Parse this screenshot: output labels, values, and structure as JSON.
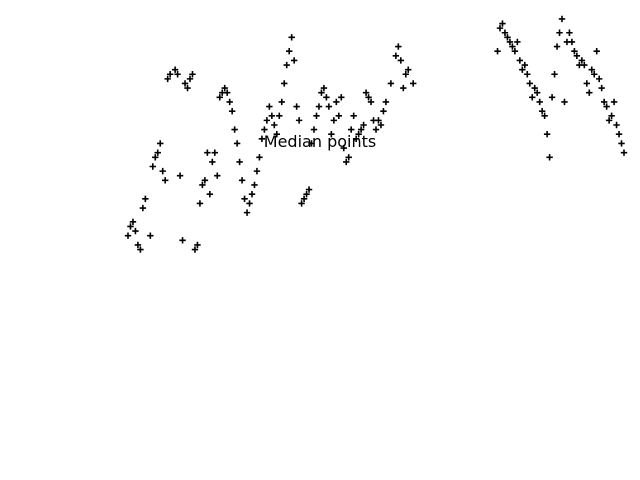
{
  "chart_data": {
    "type": "scatter",
    "title": "Median points",
    "xlabel": "",
    "ylabel": "",
    "xlim": [
      0,
      400
    ],
    "ylim": [
      -50,
      110
    ],
    "grid": false,
    "axes_visible": false,
    "marker": "plus",
    "color": "#000000",
    "series": [
      {
        "points": [
          [
            0,
            0
          ],
          [
            2,
            4
          ],
          [
            4,
            6
          ],
          [
            6,
            2
          ],
          [
            8,
            -4
          ],
          [
            10,
            -6
          ],
          [
            12,
            12
          ],
          [
            14,
            16
          ],
          [
            18,
            0
          ],
          [
            20,
            30
          ],
          [
            22,
            34
          ],
          [
            24,
            36
          ],
          [
            26,
            40
          ],
          [
            28,
            28
          ],
          [
            30,
            24
          ],
          [
            32,
            68
          ],
          [
            34,
            70
          ],
          [
            38,
            72
          ],
          [
            40,
            70
          ],
          [
            42,
            26
          ],
          [
            44,
            -2
          ],
          [
            46,
            66
          ],
          [
            48,
            64
          ],
          [
            50,
            68
          ],
          [
            52,
            70
          ],
          [
            54,
            -6
          ],
          [
            56,
            -4
          ],
          [
            58,
            14
          ],
          [
            60,
            22
          ],
          [
            62,
            24
          ],
          [
            64,
            36
          ],
          [
            66,
            18
          ],
          [
            68,
            32
          ],
          [
            70,
            36
          ],
          [
            72,
            26
          ],
          [
            74,
            60
          ],
          [
            76,
            62
          ],
          [
            78,
            64
          ],
          [
            80,
            62
          ],
          [
            82,
            58
          ],
          [
            84,
            54
          ],
          [
            86,
            46
          ],
          [
            88,
            40
          ],
          [
            90,
            32
          ],
          [
            92,
            24
          ],
          [
            94,
            16
          ],
          [
            96,
            10
          ],
          [
            98,
            14
          ],
          [
            100,
            18
          ],
          [
            102,
            22
          ],
          [
            104,
            28
          ],
          [
            106,
            34
          ],
          [
            108,
            42
          ],
          [
            110,
            46
          ],
          [
            112,
            50
          ],
          [
            114,
            56
          ],
          [
            116,
            52
          ],
          [
            118,
            48
          ],
          [
            120,
            44
          ],
          [
            122,
            52
          ],
          [
            124,
            58
          ],
          [
            126,
            66
          ],
          [
            128,
            74
          ],
          [
            130,
            80
          ],
          [
            132,
            86
          ],
          [
            134,
            76
          ],
          [
            136,
            56
          ],
          [
            138,
            50
          ],
          [
            140,
            14
          ],
          [
            142,
            16
          ],
          [
            144,
            18
          ],
          [
            146,
            20
          ],
          [
            148,
            40
          ],
          [
            150,
            46
          ],
          [
            152,
            52
          ],
          [
            154,
            56
          ],
          [
            156,
            62
          ],
          [
            158,
            64
          ],
          [
            160,
            60
          ],
          [
            162,
            56
          ],
          [
            164,
            44
          ],
          [
            166,
            50
          ],
          [
            168,
            58
          ],
          [
            170,
            52
          ],
          [
            172,
            60
          ],
          [
            174,
            38
          ],
          [
            176,
            32
          ],
          [
            178,
            34
          ],
          [
            180,
            46
          ],
          [
            182,
            52
          ],
          [
            184,
            42
          ],
          [
            186,
            44
          ],
          [
            188,
            46
          ],
          [
            190,
            48
          ],
          [
            192,
            62
          ],
          [
            194,
            60
          ],
          [
            196,
            58
          ],
          [
            198,
            50
          ],
          [
            200,
            46
          ],
          [
            202,
            50
          ],
          [
            204,
            48
          ],
          [
            206,
            54
          ],
          [
            208,
            58
          ],
          [
            212,
            66
          ],
          [
            216,
            78
          ],
          [
            218,
            82
          ],
          [
            220,
            76
          ],
          [
            222,
            64
          ],
          [
            224,
            70
          ],
          [
            226,
            72
          ],
          [
            230,
            66
          ]
        ]
      },
      {
        "points": [
          [
            352,
            58
          ],
          [
            354,
            84
          ],
          [
            356,
            88
          ],
          [
            358,
            84
          ],
          [
            360,
            80
          ],
          [
            362,
            78
          ],
          [
            364,
            74
          ],
          [
            366,
            76
          ],
          [
            368,
            74
          ],
          [
            370,
            66
          ],
          [
            372,
            62
          ],
          [
            374,
            72
          ],
          [
            376,
            70
          ],
          [
            378,
            80
          ],
          [
            380,
            68
          ],
          [
            382,
            64
          ],
          [
            384,
            58
          ],
          [
            386,
            56
          ],
          [
            388,
            50
          ],
          [
            390,
            52
          ],
          [
            392,
            58
          ],
          [
            394,
            48
          ],
          [
            396,
            44
          ],
          [
            398,
            40
          ],
          [
            400,
            36
          ]
        ]
      },
      {
        "points": [
          [
            298,
            80
          ],
          [
            300,
            90
          ],
          [
            302,
            92
          ],
          [
            304,
            88
          ],
          [
            306,
            86
          ],
          [
            308,
            84
          ],
          [
            310,
            82
          ],
          [
            312,
            80
          ],
          [
            314,
            84
          ],
          [
            316,
            76
          ],
          [
            318,
            72
          ],
          [
            320,
            74
          ],
          [
            322,
            70
          ],
          [
            324,
            66
          ],
          [
            326,
            60
          ],
          [
            328,
            64
          ],
          [
            330,
            62
          ],
          [
            332,
            58
          ],
          [
            334,
            54
          ],
          [
            336,
            52
          ],
          [
            338,
            44
          ],
          [
            340,
            34
          ],
          [
            342,
            60
          ],
          [
            344,
            70
          ],
          [
            346,
            82
          ],
          [
            348,
            88
          ],
          [
            350,
            94
          ]
        ]
      }
    ]
  }
}
